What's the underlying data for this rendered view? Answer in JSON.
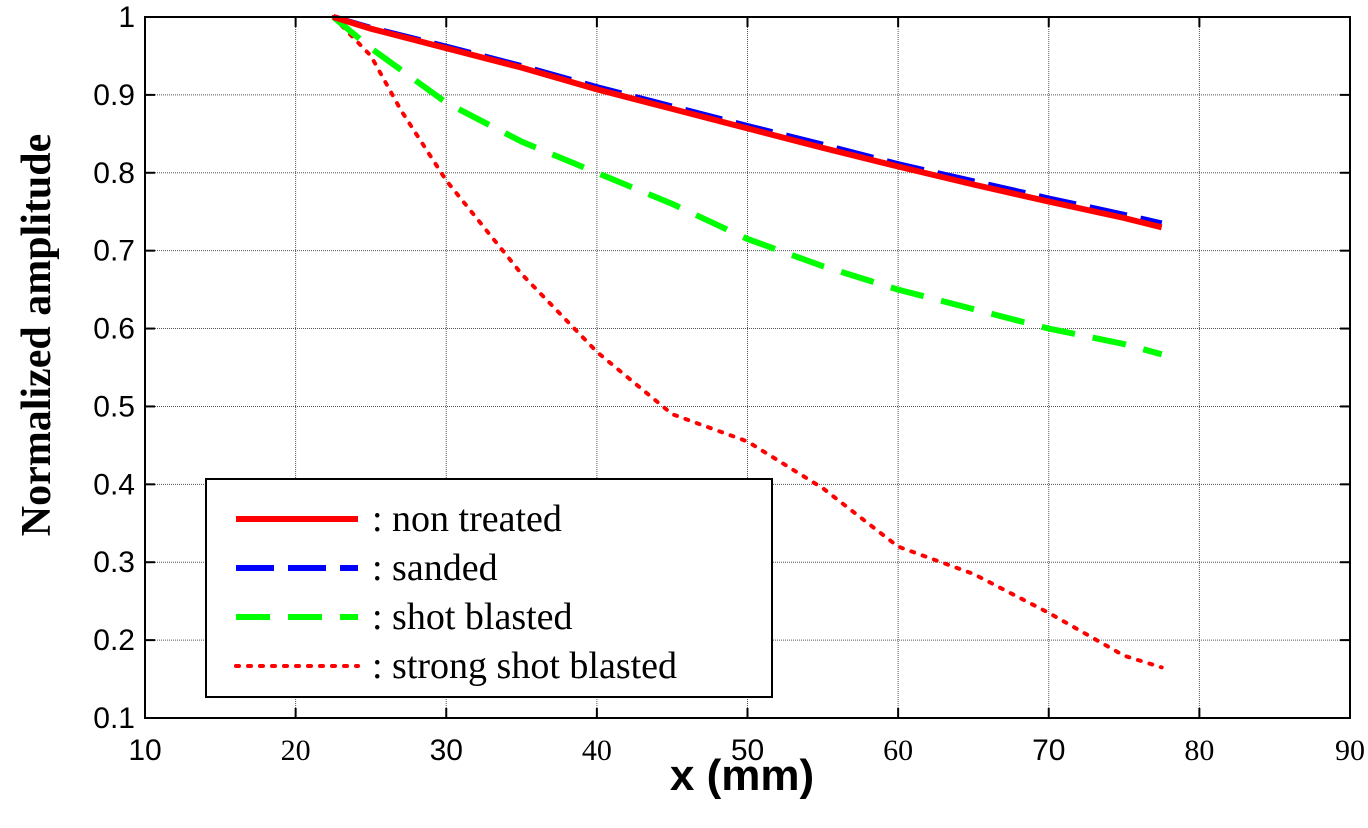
{
  "chart_data": {
    "type": "line",
    "title": "",
    "xlabel": "x (mm)",
    "ylabel": "Normalized amplitude",
    "xlim": [
      10,
      90
    ],
    "ylim": [
      0.1,
      1
    ],
    "xticks": [
      "10",
      "20",
      "30",
      "40",
      "50",
      "60",
      "70",
      "80",
      "90"
    ],
    "yticks": [
      "0.1",
      "0.2",
      "0.3",
      "0.4",
      "0.5",
      "0.6",
      "0.7",
      "0.8",
      "0.9",
      "1"
    ],
    "grid": true,
    "legend_position": "bottom-left",
    "series": [
      {
        "name": ": non treated",
        "color": "#ff0000",
        "style": "solid",
        "x": [
          22.5,
          25,
          30,
          35,
          40,
          45,
          50,
          55,
          60,
          65,
          70,
          75,
          77.5
        ],
        "y": [
          1.0,
          0.985,
          0.96,
          0.935,
          0.907,
          0.882,
          0.857,
          0.832,
          0.808,
          0.785,
          0.763,
          0.742,
          0.73
        ]
      },
      {
        "name": ": sanded",
        "color": "#0000ff",
        "style": "dashed",
        "x": [
          22.5,
          25,
          30,
          35,
          40,
          45,
          50,
          55,
          60,
          65,
          70,
          75,
          77.5
        ],
        "y": [
          1.0,
          0.986,
          0.962,
          0.937,
          0.91,
          0.885,
          0.86,
          0.836,
          0.811,
          0.789,
          0.767,
          0.746,
          0.735
        ]
      },
      {
        "name": ": shot blasted",
        "color": "#00ff00",
        "style": "dashed",
        "x": [
          22.5,
          25,
          30,
          35,
          40,
          45,
          50,
          55,
          60,
          65,
          70,
          75,
          77.5
        ],
        "y": [
          1.0,
          0.96,
          0.89,
          0.84,
          0.8,
          0.76,
          0.715,
          0.68,
          0.65,
          0.625,
          0.6,
          0.58,
          0.567
        ]
      },
      {
        "name": ": strong shot blasted",
        "color": "#ff0000",
        "style": "dotted",
        "x": [
          22.5,
          25,
          27,
          30,
          35,
          40,
          45,
          50,
          55,
          60,
          65,
          70,
          75,
          77.5
        ],
        "y": [
          1.0,
          0.95,
          0.88,
          0.79,
          0.67,
          0.57,
          0.49,
          0.455,
          0.395,
          0.32,
          0.285,
          0.235,
          0.18,
          0.165
        ]
      }
    ]
  }
}
